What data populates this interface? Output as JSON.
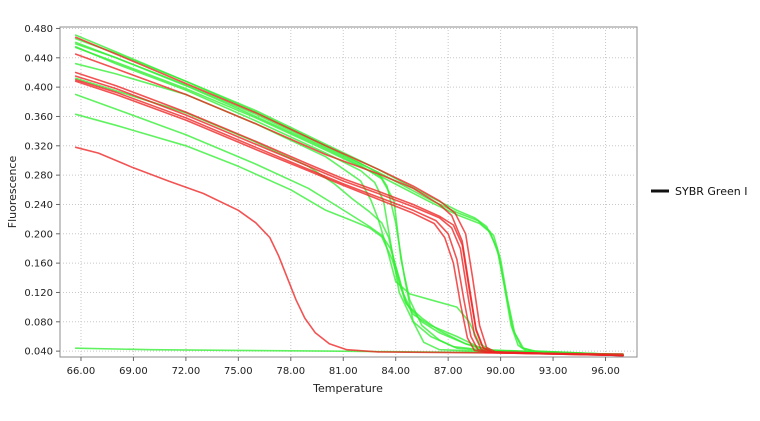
{
  "chart_data": {
    "type": "line",
    "title": "",
    "xlabel": "Temperature",
    "ylabel": "Fluorescence",
    "xlim": [
      64.8,
      97.8
    ],
    "ylim": [
      0.032,
      0.482
    ],
    "x_ticks": [
      66,
      69,
      72,
      75,
      78,
      81,
      84,
      87,
      90,
      93,
      96
    ],
    "x_tick_labels": [
      "66.00",
      "69.00",
      "72.00",
      "75.00",
      "78.00",
      "81.00",
      "84.00",
      "87.00",
      "90.00",
      "93.00",
      "96.00"
    ],
    "y_ticks": [
      0.04,
      0.08,
      0.12,
      0.16,
      0.2,
      0.24,
      0.28,
      0.32,
      0.36,
      0.4,
      0.44,
      0.48
    ],
    "y_tick_labels": [
      "0.040",
      "0.080",
      "0.120",
      "0.160",
      "0.200",
      "0.240",
      "0.280",
      "0.320",
      "0.360",
      "0.400",
      "0.440",
      "0.480"
    ],
    "grid": true,
    "legend": {
      "placement": "right",
      "entries": [
        {
          "label": "SYBR Green I",
          "color": "#111111"
        }
      ]
    },
    "colors": {
      "green": "#33ee33",
      "red": "#ee2222"
    },
    "series": [
      {
        "color": "#33ee33",
        "points": [
          [
            65.7,
            0.471
          ],
          [
            68,
            0.448
          ],
          [
            72,
            0.408
          ],
          [
            76,
            0.366
          ],
          [
            80,
            0.32
          ],
          [
            82,
            0.296
          ],
          [
            83,
            0.283
          ],
          [
            83.5,
            0.265
          ],
          [
            84,
            0.215
          ],
          [
            84.5,
            0.14
          ],
          [
            85,
            0.08
          ],
          [
            85.6,
            0.052
          ],
          [
            86.5,
            0.042
          ],
          [
            90,
            0.039
          ],
          [
            97,
            0.035
          ]
        ]
      },
      {
        "color": "#33ee33",
        "points": [
          [
            65.7,
            0.461
          ],
          [
            68,
            0.44
          ],
          [
            72,
            0.402
          ],
          [
            76,
            0.36
          ],
          [
            80,
            0.316
          ],
          [
            82,
            0.293
          ],
          [
            83.2,
            0.275
          ],
          [
            83.9,
            0.245
          ],
          [
            84.3,
            0.165
          ],
          [
            84.8,
            0.11
          ],
          [
            85.5,
            0.075
          ],
          [
            86.5,
            0.055
          ],
          [
            87.5,
            0.044
          ],
          [
            90,
            0.039
          ],
          [
            97,
            0.035
          ]
        ]
      },
      {
        "color": "#33ee33",
        "points": [
          [
            65.7,
            0.455
          ],
          [
            68,
            0.432
          ],
          [
            72,
            0.396
          ],
          [
            76,
            0.354
          ],
          [
            80,
            0.31
          ],
          [
            82,
            0.286
          ],
          [
            82.8,
            0.27
          ],
          [
            83.3,
            0.245
          ],
          [
            83.8,
            0.175
          ],
          [
            84.2,
            0.12
          ],
          [
            85,
            0.08
          ],
          [
            86,
            0.06
          ],
          [
            87.3,
            0.046
          ],
          [
            90,
            0.039
          ],
          [
            97,
            0.035
          ]
        ]
      },
      {
        "color": "#33ee33",
        "points": [
          [
            65.7,
            0.432
          ],
          [
            68,
            0.418
          ],
          [
            72,
            0.39
          ],
          [
            76,
            0.35
          ],
          [
            80,
            0.305
          ],
          [
            82,
            0.272
          ],
          [
            82.6,
            0.245
          ],
          [
            83,
            0.22
          ],
          [
            83.5,
            0.18
          ],
          [
            84,
            0.135
          ],
          [
            84.8,
            0.118
          ],
          [
            86,
            0.11
          ],
          [
            87.5,
            0.1
          ],
          [
            88.2,
            0.08
          ],
          [
            88.8,
            0.05
          ],
          [
            89.5,
            0.041
          ],
          [
            97,
            0.035
          ]
        ]
      },
      {
        "color": "#33ee33",
        "points": [
          [
            65.7,
            0.412
          ],
          [
            68,
            0.395
          ],
          [
            72,
            0.365
          ],
          [
            76,
            0.325
          ],
          [
            79,
            0.292
          ],
          [
            80.5,
            0.268
          ],
          [
            81.5,
            0.248
          ],
          [
            82.5,
            0.23
          ],
          [
            83.2,
            0.215
          ],
          [
            83.6,
            0.195
          ],
          [
            84,
            0.155
          ],
          [
            84.5,
            0.11
          ],
          [
            85,
            0.09
          ],
          [
            86,
            0.075
          ],
          [
            87.5,
            0.06
          ],
          [
            88.8,
            0.045
          ],
          [
            90,
            0.039
          ],
          [
            97,
            0.035
          ]
        ]
      },
      {
        "color": "#33ee33",
        "points": [
          [
            65.7,
            0.39
          ],
          [
            68,
            0.37
          ],
          [
            72,
            0.335
          ],
          [
            76,
            0.295
          ],
          [
            79,
            0.262
          ],
          [
            80.5,
            0.24
          ],
          [
            81.5,
            0.225
          ],
          [
            82.5,
            0.21
          ],
          [
            83.2,
            0.198
          ],
          [
            83.7,
            0.18
          ],
          [
            84.2,
            0.14
          ],
          [
            84.6,
            0.105
          ],
          [
            85.5,
            0.08
          ],
          [
            86.5,
            0.065
          ],
          [
            88,
            0.05
          ],
          [
            89,
            0.042
          ],
          [
            97,
            0.035
          ]
        ]
      },
      {
        "color": "#33ee33",
        "points": [
          [
            65.7,
            0.363
          ],
          [
            68,
            0.348
          ],
          [
            72,
            0.32
          ],
          [
            75,
            0.292
          ],
          [
            78,
            0.26
          ],
          [
            80,
            0.232
          ],
          [
            81.5,
            0.218
          ],
          [
            82.5,
            0.208
          ],
          [
            83.2,
            0.196
          ],
          [
            83.8,
            0.165
          ],
          [
            84.3,
            0.125
          ],
          [
            84.8,
            0.1
          ],
          [
            85.5,
            0.085
          ],
          [
            86.5,
            0.068
          ],
          [
            88,
            0.05
          ],
          [
            89.5,
            0.041
          ],
          [
            97,
            0.035
          ]
        ]
      },
      {
        "color": "#33ee33",
        "points": [
          [
            65.7,
            0.466
          ],
          [
            68,
            0.446
          ],
          [
            72,
            0.408
          ],
          [
            76,
            0.368
          ],
          [
            80,
            0.322
          ],
          [
            83,
            0.288
          ],
          [
            86,
            0.25
          ],
          [
            87.5,
            0.232
          ],
          [
            88.5,
            0.222
          ],
          [
            89.2,
            0.21
          ],
          [
            89.8,
            0.18
          ],
          [
            90.2,
            0.13
          ],
          [
            90.6,
            0.075
          ],
          [
            91,
            0.048
          ],
          [
            91.5,
            0.04
          ],
          [
            97,
            0.035
          ]
        ]
      },
      {
        "color": "#33ee33",
        "points": [
          [
            65.7,
            0.459
          ],
          [
            68,
            0.44
          ],
          [
            72,
            0.403
          ],
          [
            76,
            0.363
          ],
          [
            80,
            0.318
          ],
          [
            83,
            0.284
          ],
          [
            86,
            0.246
          ],
          [
            87.5,
            0.229
          ],
          [
            88.7,
            0.218
          ],
          [
            89.4,
            0.203
          ],
          [
            89.9,
            0.17
          ],
          [
            90.3,
            0.12
          ],
          [
            90.7,
            0.07
          ],
          [
            91.2,
            0.045
          ],
          [
            91.8,
            0.04
          ],
          [
            97,
            0.035
          ]
        ]
      },
      {
        "color": "#33ee33",
        "points": [
          [
            65.7,
            0.454
          ],
          [
            68,
            0.434
          ],
          [
            72,
            0.398
          ],
          [
            76,
            0.358
          ],
          [
            80,
            0.314
          ],
          [
            83,
            0.28
          ],
          [
            86,
            0.243
          ],
          [
            87.5,
            0.226
          ],
          [
            88.8,
            0.214
          ],
          [
            89.6,
            0.198
          ],
          [
            90,
            0.165
          ],
          [
            90.4,
            0.11
          ],
          [
            90.8,
            0.065
          ],
          [
            91.3,
            0.044
          ],
          [
            92,
            0.04
          ],
          [
            97,
            0.035
          ]
        ]
      },
      {
        "color": "#33ee33",
        "points": [
          [
            65.7,
            0.044
          ],
          [
            70,
            0.042
          ],
          [
            75,
            0.041
          ],
          [
            80,
            0.04
          ],
          [
            85,
            0.039
          ],
          [
            90,
            0.038
          ],
          [
            97,
            0.036
          ]
        ]
      },
      {
        "color": "#ee2222",
        "points": [
          [
            65.7,
            0.445
          ],
          [
            68,
            0.425
          ],
          [
            72,
            0.39
          ],
          [
            76,
            0.35
          ],
          [
            80,
            0.308
          ],
          [
            83,
            0.282
          ],
          [
            85,
            0.262
          ],
          [
            86.5,
            0.24
          ],
          [
            87.2,
            0.225
          ],
          [
            87.8,
            0.19
          ],
          [
            88.2,
            0.13
          ],
          [
            88.6,
            0.07
          ],
          [
            89,
            0.045
          ],
          [
            89.5,
            0.039
          ],
          [
            97,
            0.034
          ]
        ]
      },
      {
        "color": "#ee2222",
        "points": [
          [
            65.7,
            0.42
          ],
          [
            68,
            0.402
          ],
          [
            72,
            0.366
          ],
          [
            76,
            0.326
          ],
          [
            79,
            0.295
          ],
          [
            81,
            0.275
          ],
          [
            83,
            0.258
          ],
          [
            85,
            0.24
          ],
          [
            86.5,
            0.224
          ],
          [
            87.3,
            0.212
          ],
          [
            87.8,
            0.185
          ],
          [
            88.2,
            0.125
          ],
          [
            88.6,
            0.068
          ],
          [
            89,
            0.044
          ],
          [
            89.5,
            0.039
          ],
          [
            97,
            0.034
          ]
        ]
      },
      {
        "color": "#ee2222",
        "points": [
          [
            65.7,
            0.415
          ],
          [
            68,
            0.398
          ],
          [
            72,
            0.362
          ],
          [
            76,
            0.322
          ],
          [
            79,
            0.292
          ],
          [
            81,
            0.272
          ],
          [
            83,
            0.255
          ],
          [
            85,
            0.237
          ],
          [
            86.5,
            0.222
          ],
          [
            87.2,
            0.208
          ],
          [
            87.7,
            0.18
          ],
          [
            88.1,
            0.12
          ],
          [
            88.5,
            0.062
          ],
          [
            88.9,
            0.042
          ],
          [
            89.5,
            0.038
          ],
          [
            97,
            0.034
          ]
        ]
      },
      {
        "color": "#ee2222",
        "points": [
          [
            65.7,
            0.41
          ],
          [
            68,
            0.393
          ],
          [
            72,
            0.358
          ],
          [
            76,
            0.318
          ],
          [
            79,
            0.288
          ],
          [
            81,
            0.268
          ],
          [
            83,
            0.25
          ],
          [
            85,
            0.232
          ],
          [
            86.3,
            0.218
          ],
          [
            87,
            0.2
          ],
          [
            87.5,
            0.165
          ],
          [
            87.9,
            0.11
          ],
          [
            88.3,
            0.06
          ],
          [
            88.7,
            0.042
          ],
          [
            89.3,
            0.038
          ],
          [
            97,
            0.034
          ]
        ]
      },
      {
        "color": "#ee2222",
        "points": [
          [
            65.7,
            0.408
          ],
          [
            68,
            0.39
          ],
          [
            72,
            0.355
          ],
          [
            76,
            0.315
          ],
          [
            79,
            0.286
          ],
          [
            81,
            0.266
          ],
          [
            83,
            0.247
          ],
          [
            85,
            0.228
          ],
          [
            86.2,
            0.214
          ],
          [
            86.8,
            0.195
          ],
          [
            87.3,
            0.16
          ],
          [
            87.7,
            0.105
          ],
          [
            88.1,
            0.058
          ],
          [
            88.5,
            0.041
          ],
          [
            89.2,
            0.038
          ],
          [
            97,
            0.034
          ]
        ]
      },
      {
        "color": "#ee2222",
        "points": [
          [
            65.7,
            0.468
          ],
          [
            68,
            0.445
          ],
          [
            72,
            0.405
          ],
          [
            76,
            0.365
          ],
          [
            80,
            0.32
          ],
          [
            83,
            0.288
          ],
          [
            85,
            0.265
          ],
          [
            86.5,
            0.245
          ],
          [
            87.4,
            0.228
          ],
          [
            88,
            0.2
          ],
          [
            88.4,
            0.14
          ],
          [
            88.8,
            0.075
          ],
          [
            89.2,
            0.045
          ],
          [
            89.7,
            0.039
          ],
          [
            97,
            0.034
          ]
        ]
      },
      {
        "color": "#ee2222",
        "points": [
          [
            65.7,
            0.318
          ],
          [
            67,
            0.31
          ],
          [
            69,
            0.29
          ],
          [
            71,
            0.272
          ],
          [
            73,
            0.255
          ],
          [
            75,
            0.232
          ],
          [
            76,
            0.215
          ],
          [
            76.8,
            0.195
          ],
          [
            77.3,
            0.17
          ],
          [
            77.8,
            0.14
          ],
          [
            78.3,
            0.11
          ],
          [
            78.8,
            0.085
          ],
          [
            79.4,
            0.065
          ],
          [
            80.2,
            0.05
          ],
          [
            81.2,
            0.042
          ],
          [
            83,
            0.039
          ],
          [
            97,
            0.036
          ]
        ]
      }
    ]
  }
}
